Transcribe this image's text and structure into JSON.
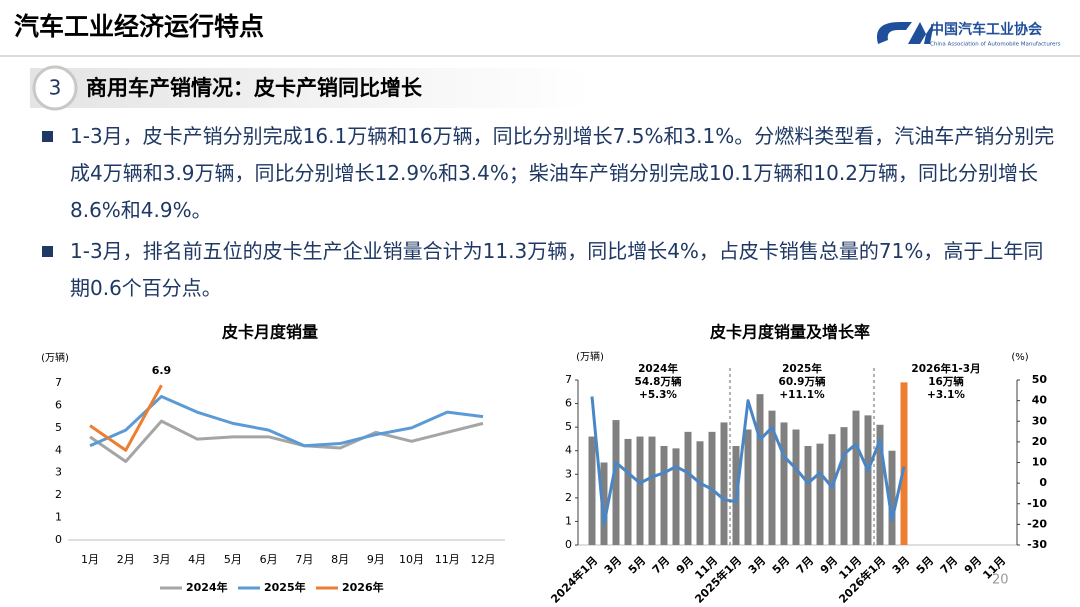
{
  "header": {
    "title": "汽车工业经济运行特点",
    "logo_cn": "中国汽车工业协会",
    "logo_en": "China Association of Automobile Manufacturers"
  },
  "section": {
    "number": "3",
    "title": "商用车产销情况：皮卡产销同比增长"
  },
  "bullets": [
    "1-3月，皮卡产销分别完成16.1万辆和16万辆，同比分别增长7.5%和3.1%。分燃料类型看，汽油车产销分别完成4万辆和3.9万辆，同比分别增长12.9%和3.4%；柴油车产销分别完成10.1万辆和10.2万辆，同比分别增长8.6%和4.9%。",
    "1-3月，排名前五位的皮卡生产企业销量合计为11.3万辆，同比增长4%，占皮卡销售总量的71%，高于上年同期0.6个百分点。"
  ],
  "page_number": "20",
  "chart_data": [
    {
      "type": "line",
      "title": "皮卡月度销量",
      "y_unit": "(万辆)",
      "categories": [
        "1月",
        "2月",
        "3月",
        "4月",
        "5月",
        "6月",
        "7月",
        "8月",
        "9月",
        "10月",
        "11月",
        "12月"
      ],
      "ylim": [
        0,
        7
      ],
      "yticks": [
        0,
        1,
        2,
        3,
        4,
        5,
        6,
        7
      ],
      "legend": "bottom",
      "series": [
        {
          "name": "2024年",
          "color": "#a5a5a5",
          "values": [
            4.6,
            3.5,
            5.3,
            4.5,
            4.6,
            4.6,
            4.2,
            4.1,
            4.8,
            4.4,
            4.8,
            5.2
          ]
        },
        {
          "name": "2025年",
          "color": "#5b9bd5",
          "values": [
            4.2,
            4.9,
            6.4,
            5.7,
            5.2,
            4.9,
            4.2,
            4.3,
            4.7,
            5.0,
            5.7,
            5.5
          ]
        },
        {
          "name": "2026年",
          "color": "#ed7d31",
          "values": [
            5.1,
            4.0,
            6.9,
            null,
            null,
            null,
            null,
            null,
            null,
            null,
            null,
            null
          ],
          "labeled_points": [
            2
          ]
        }
      ]
    },
    {
      "type": "bar-line",
      "title": "皮卡月度销量及增长率",
      "y_unit": "(万辆)",
      "y2_unit": "(%)",
      "categories": [
        "2024年1月",
        null,
        "3月",
        null,
        "5月",
        null,
        "7月",
        null,
        "9月",
        null,
        "11月",
        null,
        "2025年1月",
        null,
        "3月",
        null,
        "5月",
        null,
        "7月",
        null,
        "9月",
        null,
        "11月",
        null,
        "2026年1月",
        null,
        "3月",
        null,
        "5月",
        null,
        "7月",
        null,
        "9月",
        null,
        "11月",
        null
      ],
      "ylim": [
        0,
        7
      ],
      "yticks": [
        0,
        1,
        2,
        3,
        4,
        5,
        6,
        7
      ],
      "y2lim": [
        -30,
        50
      ],
      "y2ticks": [
        -30,
        -20,
        -10,
        0,
        10,
        20,
        30,
        40,
        50
      ],
      "annotations": [
        [
          "2024年",
          "54.8万辆",
          "+5.3%"
        ],
        [
          "2025年",
          "60.9万辆",
          "+11.1%"
        ],
        [
          "2026年1-3月",
          "16万辆",
          "+3.1%"
        ]
      ],
      "series": [
        {
          "type": "bar",
          "color": "#808080",
          "values": [
            4.6,
            3.5,
            5.3,
            4.5,
            4.6,
            4.6,
            4.2,
            4.1,
            4.8,
            4.4,
            4.8,
            5.2,
            4.2,
            4.9,
            6.4,
            5.7,
            5.2,
            4.9,
            4.2,
            4.3,
            4.7,
            5.0,
            5.7,
            5.5,
            5.1,
            4.0,
            null,
            null,
            null,
            null,
            null,
            null,
            null,
            null,
            null,
            null
          ]
        },
        {
          "type": "bar",
          "color": "#ed7d31",
          "values": [
            null,
            null,
            null,
            null,
            null,
            null,
            null,
            null,
            null,
            null,
            null,
            null,
            null,
            null,
            null,
            null,
            null,
            null,
            null,
            null,
            null,
            null,
            null,
            null,
            null,
            null,
            6.9,
            null,
            null,
            null,
            null,
            null,
            null,
            null,
            null,
            null
          ]
        },
        {
          "type": "line",
          "axis": "y2",
          "color": "#4a86c5",
          "values": [
            42,
            -20,
            10,
            5,
            0,
            3,
            5,
            8,
            5,
            0,
            -3,
            -8,
            -9,
            40,
            21,
            27,
            13,
            7,
            0,
            5,
            -2,
            14,
            19,
            6,
            21,
            -18,
            8,
            null,
            null,
            null,
            null,
            null,
            null,
            null,
            null,
            null
          ]
        }
      ]
    }
  ]
}
